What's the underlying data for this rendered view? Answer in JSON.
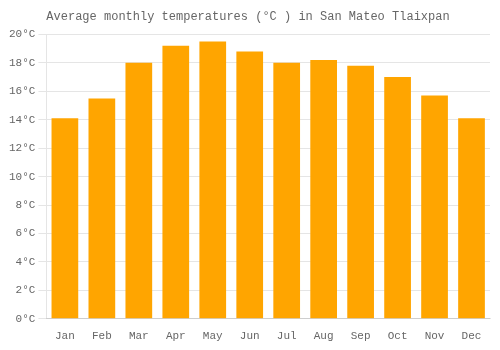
{
  "chart_data": {
    "type": "bar",
    "title": "Average monthly temperatures (°C ) in San Mateo Tlaixpan",
    "categories": [
      "Jan",
      "Feb",
      "Mar",
      "Apr",
      "May",
      "Jun",
      "Jul",
      "Aug",
      "Sep",
      "Oct",
      "Nov",
      "Dec"
    ],
    "values": [
      14.1,
      15.5,
      18.0,
      19.2,
      19.5,
      18.8,
      18.0,
      18.2,
      17.8,
      17.0,
      15.7,
      14.1
    ],
    "color": "#FFA500",
    "ylim": [
      0,
      20
    ],
    "yticks": [
      {
        "value": 0,
        "label": "0°C"
      },
      {
        "value": 2,
        "label": "2°C"
      },
      {
        "value": 4,
        "label": "4°C"
      },
      {
        "value": 6,
        "label": "6°C"
      },
      {
        "value": 8,
        "label": "8°C"
      },
      {
        "value": 10,
        "label": "10°C"
      },
      {
        "value": 12,
        "label": "12°C"
      },
      {
        "value": 14,
        "label": "14°C"
      },
      {
        "value": 16,
        "label": "16°C"
      },
      {
        "value": 18,
        "label": "18°C"
      },
      {
        "value": 20,
        "label": "20°C"
      }
    ],
    "grid": true
  }
}
